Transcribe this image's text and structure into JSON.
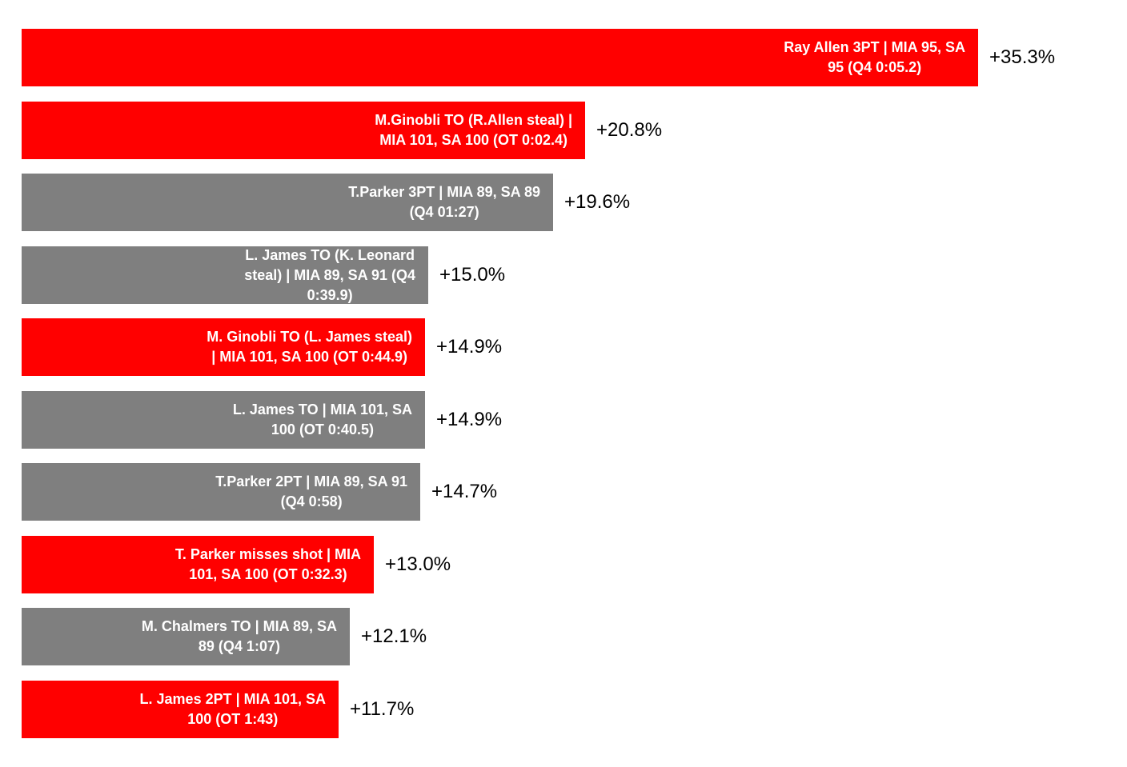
{
  "chart_data": {
    "type": "bar",
    "orientation": "horizontal",
    "title": "",
    "xlabel": "",
    "ylabel": "",
    "grid": false,
    "legend": "none",
    "colors": {
      "highlight": "#ff0000",
      "default": "#7f7f7f",
      "value_text": "#000000",
      "bar_text": "#ffffff"
    },
    "xlim": [
      0,
      35.3
    ],
    "categories": [
      "Ray Allen 3PT | MIA 95, SA 95 (Q4 0:05.2)",
      "M.Ginobli TO (R.Allen steal) | MIA 101, SA 100 (OT 0:02.4)",
      "T.Parker 3PT | MIA 89, SA 89 (Q4 01:27)",
      "L. James TO (K. Leonard steal) | MIA 89, SA 91 (Q4 0:39.9)",
      "M. Ginobli TO (L. James steal) | MIA 101, SA 100 (OT 0:44.9)",
      "L. James TO | MIA 101, SA 100 (OT 0:40.5)",
      "T.Parker 2PT | MIA 89, SA 91 (Q4 0:58)",
      "T. Parker misses shot | MIA 101, SA 100 (OT 0:32.3)",
      "M. Chalmers TO | MIA 89, SA 89 (Q4 1:07)",
      "L. James 2PT | MIA 101, SA 100 (OT 1:43)"
    ],
    "category_lines": [
      "Ray Allen 3PT | MIA 95, SA\n95 (Q4 0:05.2)",
      "M.Ginobli TO (R.Allen steal) |\nMIA 101, SA 100 (OT 0:02.4)",
      "T.Parker 3PT | MIA 89, SA 89\n(Q4 01:27)",
      "L. James TO (K. Leonard\nsteal) | MIA 89, SA 91 (Q4\n0:39.9)",
      "M. Ginobli TO (L. James steal)\n| MIA 101, SA 100 (OT 0:44.9)",
      "L. James TO | MIA 101, SA\n100 (OT 0:40.5)",
      "T.Parker 2PT | MIA 89, SA 91\n(Q4 0:58)",
      "T. Parker misses shot | MIA\n101, SA 100 (OT 0:32.3)",
      "M. Chalmers TO | MIA 89, SA\n89 (Q4 1:07)",
      "L. James 2PT | MIA 101, SA\n100 (OT 1:43)"
    ],
    "values": [
      35.3,
      20.8,
      19.6,
      15.0,
      14.9,
      14.9,
      14.7,
      13.0,
      12.1,
      11.7
    ],
    "value_labels": [
      "+35.3%",
      "+20.8%",
      "+19.6%",
      "+15.0%",
      "+14.9%",
      "+14.9%",
      "+14.7%",
      "+13.0%",
      "+12.1%",
      "+11.7%"
    ],
    "highlight": [
      true,
      true,
      false,
      false,
      true,
      false,
      false,
      true,
      false,
      true
    ]
  }
}
